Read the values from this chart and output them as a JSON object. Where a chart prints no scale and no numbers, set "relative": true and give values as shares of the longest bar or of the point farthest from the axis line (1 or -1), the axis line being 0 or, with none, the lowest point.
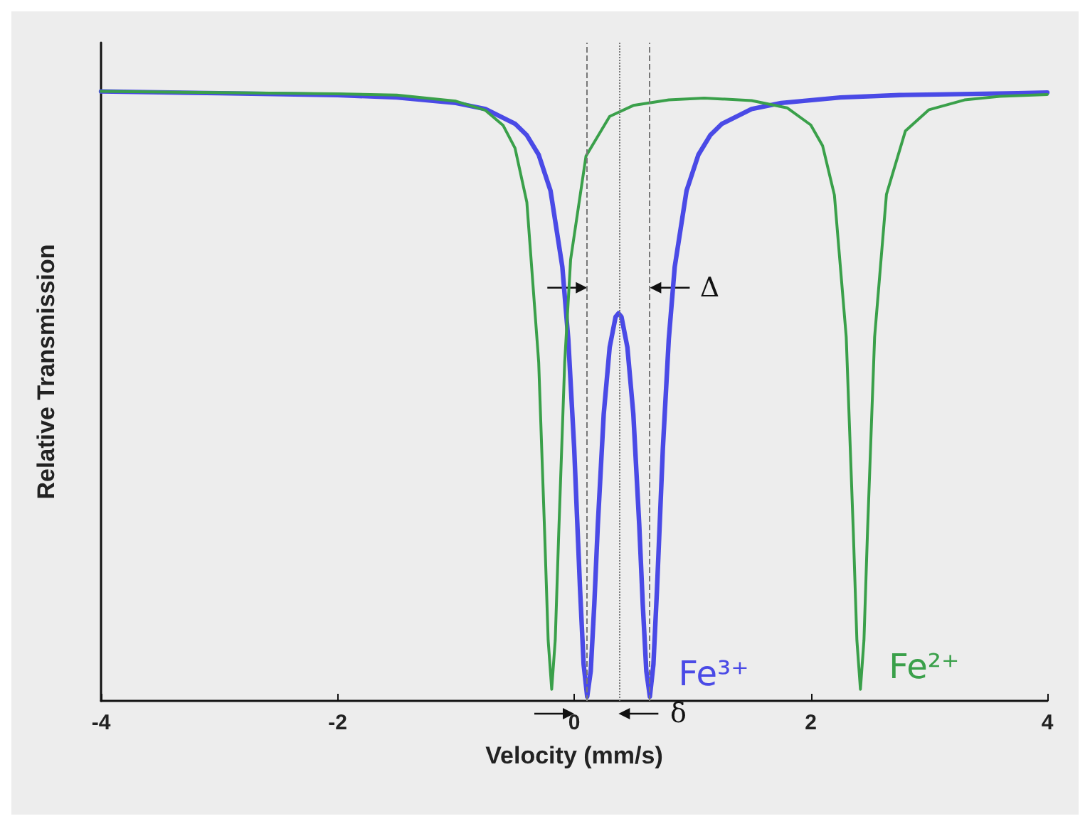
{
  "chart_data": {
    "type": "line",
    "xlabel": "Velocity (mm/s)",
    "ylabel": "Relative Transmission",
    "relative": true,
    "xlim": [
      -4,
      4
    ],
    "xticks": [
      -4,
      -2,
      0,
      2,
      4
    ],
    "grid": false,
    "legend": false,
    "marker": "none",
    "line_style": "solid",
    "series": [
      {
        "name": "Fe³⁺",
        "color": "#4a4ae6",
        "x": [
          -4,
          -3,
          -2,
          -1.5,
          -1,
          -0.75,
          -0.5,
          -0.4,
          -0.3,
          -0.2,
          -0.1,
          -0.05,
          0,
          0.05,
          0.08,
          0.11,
          0.14,
          0.17,
          0.2,
          0.25,
          0.3,
          0.35,
          0.375,
          0.4,
          0.45,
          0.5,
          0.55,
          0.58,
          0.61,
          0.64,
          0.67,
          0.7,
          0.75,
          0.8,
          0.85,
          0.95,
          1.05,
          1.15,
          1.25,
          1.5,
          1.75,
          2.25,
          2.75,
          3.75,
          4
        ],
        "values": [
          1,
          0.997,
          0.994,
          0.99,
          0.981,
          0.971,
          0.947,
          0.928,
          0.896,
          0.837,
          0.712,
          0.594,
          0.415,
          0.182,
          0.06,
          0.007,
          0.049,
          0.158,
          0.289,
          0.471,
          0.58,
          0.63,
          0.636,
          0.63,
          0.58,
          0.471,
          0.289,
          0.158,
          0.049,
          0.007,
          0.06,
          0.182,
          0.415,
          0.594,
          0.712,
          0.837,
          0.896,
          0.928,
          0.947,
          0.971,
          0.981,
          0.99,
          0.994,
          0.997,
          0.998
        ]
      },
      {
        "name": "Fe²⁺",
        "color": "#3aa04a",
        "x": [
          -4,
          -3,
          -2,
          -1.5,
          -1,
          -0.75,
          -0.6,
          -0.5,
          -0.4,
          -0.3,
          -0.25,
          -0.22,
          -0.19,
          -0.16,
          -0.13,
          -0.08,
          -0.03,
          0.1,
          0.3,
          0.5,
          0.8,
          1.1,
          1.5,
          1.8,
          2,
          2.1,
          2.2,
          2.3,
          2.36,
          2.39,
          2.42,
          2.45,
          2.48,
          2.54,
          2.64,
          2.8,
          3,
          3.3,
          3.6,
          4
        ],
        "values": [
          1,
          0.998,
          0.996,
          0.994,
          0.984,
          0.969,
          0.944,
          0.907,
          0.818,
          0.556,
          0.278,
          0.1,
          0.019,
          0.1,
          0.278,
          0.556,
          0.724,
          0.894,
          0.959,
          0.977,
          0.986,
          0.989,
          0.985,
          0.973,
          0.945,
          0.911,
          0.83,
          0.597,
          0.277,
          0.1,
          0.019,
          0.1,
          0.278,
          0.597,
          0.831,
          0.935,
          0.97,
          0.986,
          0.992,
          0.995
        ]
      }
    ],
    "ref_lines": [
      {
        "axis": "x",
        "value": 0.11,
        "line_style": "dashed",
        "color": "#777777"
      },
      {
        "axis": "x",
        "value": 0.64,
        "line_style": "dashed",
        "color": "#777777"
      },
      {
        "axis": "x",
        "value": 0.375,
        "line_style": "dotted",
        "color": "#777777"
      }
    ],
    "annotations": [
      "Δ",
      "δ"
    ]
  }
}
